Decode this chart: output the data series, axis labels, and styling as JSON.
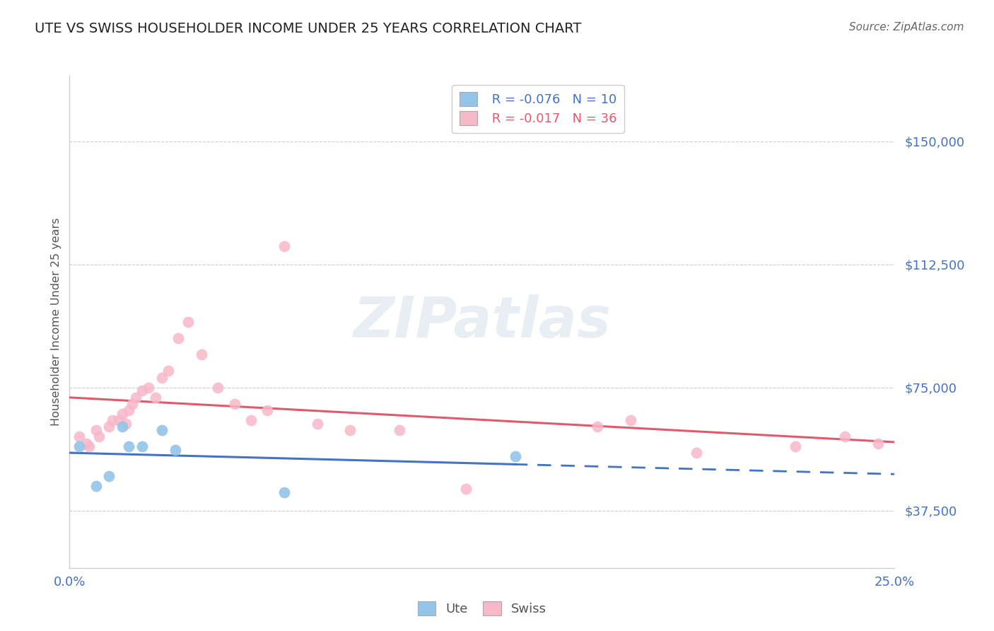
{
  "title": "UTE VS SWISS HOUSEHOLDER INCOME UNDER 25 YEARS CORRELATION CHART",
  "source": "Source: ZipAtlas.com",
  "ylabel": "Householder Income Under 25 years",
  "xlim": [
    0.0,
    0.25
  ],
  "ylim": [
    20000,
    170000
  ],
  "yticks": [
    37500,
    75000,
    112500,
    150000
  ],
  "ytick_labels": [
    "$37,500",
    "$75,000",
    "$112,500",
    "$150,000"
  ],
  "title_color": "#222222",
  "source_color": "#666666",
  "grid_color": "#cccccc",
  "ute_color": "#92c5e8",
  "swiss_color": "#f7b8c8",
  "ute_line_color": "#4472c4",
  "swiss_line_color": "#e05a6e",
  "legend_r_ute": "R = -0.076",
  "legend_n_ute": "N = 10",
  "legend_r_swiss": "R = -0.017",
  "legend_n_swiss": "N = 36",
  "ute_x": [
    0.003,
    0.008,
    0.012,
    0.016,
    0.018,
    0.022,
    0.028,
    0.032,
    0.065,
    0.135
  ],
  "ute_y": [
    57000,
    45000,
    48000,
    63000,
    57000,
    57000,
    62000,
    56000,
    43000,
    54000
  ],
  "swiss_x": [
    0.003,
    0.005,
    0.006,
    0.008,
    0.009,
    0.012,
    0.013,
    0.015,
    0.016,
    0.017,
    0.018,
    0.019,
    0.02,
    0.022,
    0.024,
    0.026,
    0.028,
    0.03,
    0.033,
    0.036,
    0.04,
    0.045,
    0.05,
    0.055,
    0.06,
    0.065,
    0.075,
    0.085,
    0.1,
    0.12,
    0.16,
    0.17,
    0.19,
    0.22,
    0.235,
    0.245
  ],
  "swiss_y": [
    60000,
    58000,
    57000,
    62000,
    60000,
    63000,
    65000,
    65000,
    67000,
    64000,
    68000,
    70000,
    72000,
    74000,
    75000,
    72000,
    78000,
    80000,
    90000,
    95000,
    85000,
    75000,
    70000,
    65000,
    68000,
    118000,
    64000,
    62000,
    62000,
    44000,
    63000,
    65000,
    55000,
    57000,
    60000,
    58000
  ],
  "watermark": "ZIPatlas",
  "background_color": "#ffffff"
}
